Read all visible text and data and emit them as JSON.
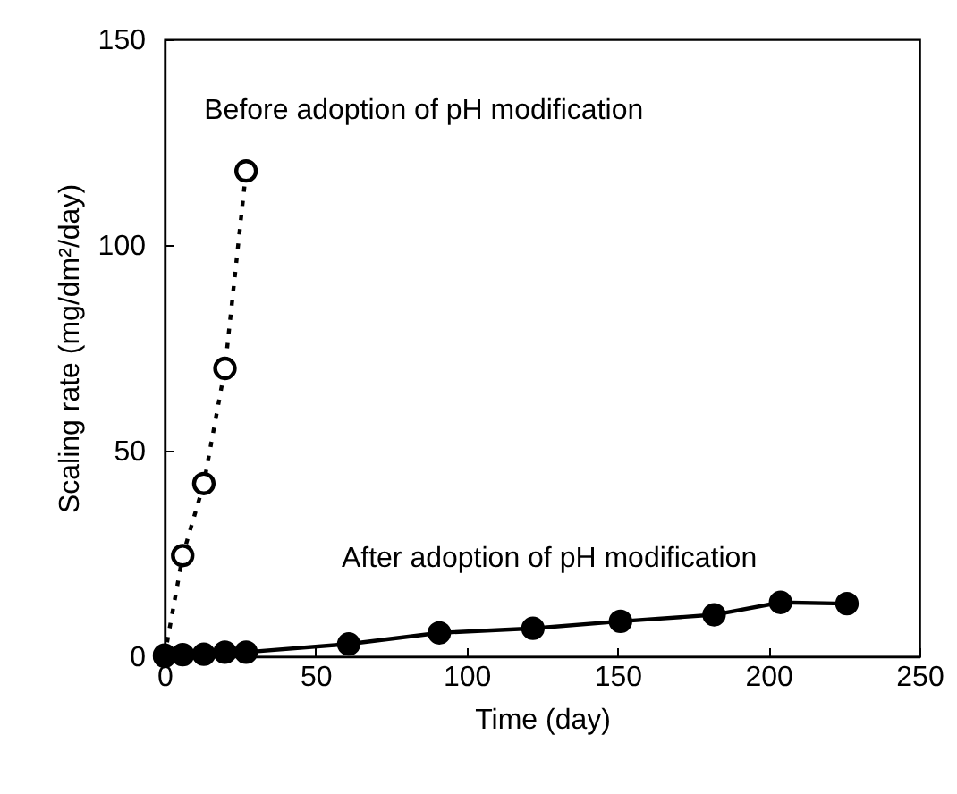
{
  "chart_data": {
    "type": "line",
    "xlabel": "Time (day)",
    "ylabel": "Scaling rate (mg/dm²/day)",
    "xlim": [
      0,
      250
    ],
    "xticks": [
      0,
      50,
      100,
      150,
      200,
      250
    ],
    "ylim": [
      0,
      150
    ],
    "yticks": [
      0,
      50,
      100,
      150
    ],
    "grid": false,
    "marker": "circle",
    "series": [
      {
        "name": "Before adoption of pH modification",
        "color": "#000000",
        "line_style": "dotted",
        "x": [
          0,
          6,
          13,
          20,
          27
        ],
        "values": [
          0,
          24.5,
          42,
          70,
          118
        ]
      },
      {
        "name": "After adoption of pH modification",
        "color": "#000000",
        "line_style": "solid",
        "x": [
          0,
          6,
          13,
          20,
          27,
          61,
          91,
          122,
          151,
          182,
          204,
          226
        ],
        "values": [
          0.3,
          0.4,
          0.5,
          1,
          1,
          3,
          5.7,
          6.8,
          8.5,
          10.1,
          13.1,
          12.8
        ]
      }
    ]
  }
}
